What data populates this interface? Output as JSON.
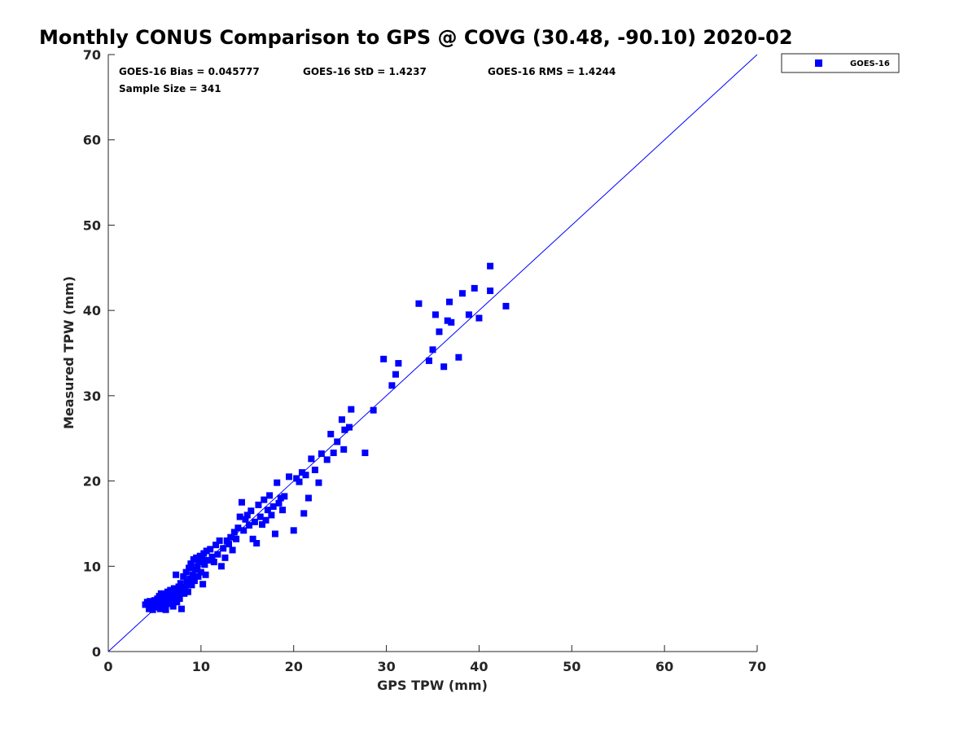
{
  "chart_data": {
    "type": "scatter",
    "title": "Monthly CONUS Comparison to GPS @ COVG (30.48, -90.10) 2020-02",
    "xlabel": "GPS TPW (mm)",
    "ylabel": "Measured TPW (mm)",
    "xlim": [
      0,
      70
    ],
    "ylim": [
      0,
      70
    ],
    "xticks": [
      "0",
      "10",
      "20",
      "30",
      "40",
      "50",
      "60",
      "70"
    ],
    "yticks": [
      "0",
      "10",
      "20",
      "30",
      "40",
      "50",
      "60",
      "70"
    ],
    "grid": false,
    "legend_position": "top-right outside",
    "annotations": {
      "bias": "GOES-16 Bias = 0.045777",
      "std": "GOES-16 StD = 1.4237",
      "rms": "GOES-16 RMS = 1.4244",
      "sample": "Sample Size = 341"
    },
    "reference_line": {
      "name": "1:1",
      "x": [
        0,
        70
      ],
      "y": [
        0,
        70
      ],
      "color": "#0000ff"
    },
    "series": [
      {
        "name": "GOES-16",
        "color": "#0000ff",
        "marker": "square",
        "points": [
          [
            4.0,
            5.5
          ],
          [
            4.2,
            5.8
          ],
          [
            4.4,
            5.0
          ],
          [
            4.5,
            5.9
          ],
          [
            4.6,
            5.3
          ],
          [
            4.8,
            4.9
          ],
          [
            4.9,
            5.6
          ],
          [
            5.0,
            6.0
          ],
          [
            5.1,
            5.2
          ],
          [
            5.2,
            5.7
          ],
          [
            5.3,
            6.2
          ],
          [
            5.4,
            5.4
          ],
          [
            5.5,
            6.5
          ],
          [
            5.6,
            5.0
          ],
          [
            5.7,
            6.8
          ],
          [
            5.8,
            5.8
          ],
          [
            5.9,
            6.1
          ],
          [
            6.0,
            5.5
          ],
          [
            6.1,
            6.6
          ],
          [
            6.2,
            4.9
          ],
          [
            6.3,
            5.9
          ],
          [
            6.4,
            7.0
          ],
          [
            6.5,
            6.3
          ],
          [
            6.6,
            5.6
          ],
          [
            6.7,
            7.2
          ],
          [
            6.8,
            6.0
          ],
          [
            6.9,
            6.7
          ],
          [
            7.0,
            5.3
          ],
          [
            7.1,
            7.4
          ],
          [
            7.2,
            6.5
          ],
          [
            7.3,
            9.0
          ],
          [
            7.4,
            5.8
          ],
          [
            7.5,
            6.9
          ],
          [
            7.6,
            7.6
          ],
          [
            7.7,
            6.2
          ],
          [
            7.8,
            8.0
          ],
          [
            7.9,
            5.0
          ],
          [
            8.0,
            7.1
          ],
          [
            8.1,
            8.8
          ],
          [
            8.2,
            6.8
          ],
          [
            8.3,
            7.5
          ],
          [
            8.4,
            9.3
          ],
          [
            8.5,
            8.1
          ],
          [
            8.6,
            7.0
          ],
          [
            8.7,
            9.8
          ],
          [
            8.8,
            8.5
          ],
          [
            8.9,
            10.3
          ],
          [
            9.0,
            7.8
          ],
          [
            9.1,
            9.0
          ],
          [
            9.2,
            10.8
          ],
          [
            9.3,
            8.3
          ],
          [
            9.4,
            9.6
          ],
          [
            9.5,
            11.0
          ],
          [
            9.6,
            10.0
          ],
          [
            9.7,
            8.8
          ],
          [
            9.8,
            10.5
          ],
          [
            9.9,
            11.2
          ],
          [
            10.0,
            9.3
          ],
          [
            10.1,
            10.9
          ],
          [
            10.2,
            7.9
          ],
          [
            10.3,
            11.5
          ],
          [
            10.4,
            10.2
          ],
          [
            10.5,
            9.0
          ],
          [
            10.6,
            11.8
          ],
          [
            10.8,
            10.7
          ],
          [
            11.0,
            12.0
          ],
          [
            11.2,
            11.1
          ],
          [
            11.4,
            10.5
          ],
          [
            11.6,
            12.5
          ],
          [
            11.8,
            11.4
          ],
          [
            12.0,
            13.0
          ],
          [
            12.2,
            10.0
          ],
          [
            12.4,
            12.1
          ],
          [
            12.6,
            11.0
          ],
          [
            12.8,
            13.0
          ],
          [
            13.0,
            12.6
          ],
          [
            13.2,
            13.4
          ],
          [
            13.4,
            11.9
          ],
          [
            13.6,
            14.0
          ],
          [
            13.8,
            13.2
          ],
          [
            14.0,
            14.5
          ],
          [
            14.2,
            15.8
          ],
          [
            14.4,
            17.5
          ],
          [
            14.6,
            14.2
          ],
          [
            14.8,
            15.5
          ],
          [
            15.0,
            16.0
          ],
          [
            15.2,
            14.8
          ],
          [
            15.4,
            16.5
          ],
          [
            15.6,
            13.2
          ],
          [
            15.8,
            15.2
          ],
          [
            16.0,
            12.7
          ],
          [
            16.2,
            17.2
          ],
          [
            16.4,
            15.8
          ],
          [
            16.6,
            14.9
          ],
          [
            16.8,
            17.8
          ],
          [
            17.0,
            15.4
          ],
          [
            17.2,
            16.6
          ],
          [
            17.4,
            18.3
          ],
          [
            17.6,
            16.0
          ],
          [
            17.8,
            17.0
          ],
          [
            18.0,
            13.8
          ],
          [
            18.2,
            19.8
          ],
          [
            18.4,
            17.4
          ],
          [
            18.6,
            18.0
          ],
          [
            18.8,
            16.6
          ],
          [
            19.0,
            18.2
          ],
          [
            19.5,
            20.5
          ],
          [
            20.0,
            14.2
          ],
          [
            20.3,
            20.3
          ],
          [
            20.6,
            19.9
          ],
          [
            20.9,
            21.0
          ],
          [
            21.1,
            16.2
          ],
          [
            21.3,
            20.7
          ],
          [
            21.6,
            18.0
          ],
          [
            21.9,
            22.6
          ],
          [
            22.3,
            21.3
          ],
          [
            22.7,
            19.8
          ],
          [
            23.0,
            23.2
          ],
          [
            23.6,
            22.5
          ],
          [
            24.0,
            25.5
          ],
          [
            24.3,
            23.3
          ],
          [
            24.7,
            24.6
          ],
          [
            25.2,
            27.2
          ],
          [
            25.5,
            26.0
          ],
          [
            25.4,
            23.7
          ],
          [
            26.0,
            26.3
          ],
          [
            26.2,
            28.4
          ],
          [
            27.7,
            23.3
          ],
          [
            28.6,
            28.3
          ],
          [
            29.7,
            34.3
          ],
          [
            30.6,
            31.2
          ],
          [
            31.0,
            32.5
          ],
          [
            31.3,
            33.8
          ],
          [
            33.5,
            40.8
          ],
          [
            34.6,
            34.1
          ],
          [
            35.0,
            35.4
          ],
          [
            35.3,
            39.5
          ],
          [
            35.7,
            37.5
          ],
          [
            36.2,
            33.4
          ],
          [
            36.6,
            38.8
          ],
          [
            37.0,
            38.6
          ],
          [
            37.8,
            34.5
          ],
          [
            38.2,
            42.0
          ],
          [
            38.9,
            39.5
          ],
          [
            39.5,
            42.6
          ],
          [
            40.0,
            39.1
          ],
          [
            41.2,
            42.3
          ],
          [
            41.2,
            45.2
          ],
          [
            42.9,
            40.5
          ],
          [
            36.8,
            41.0
          ]
        ]
      }
    ]
  }
}
